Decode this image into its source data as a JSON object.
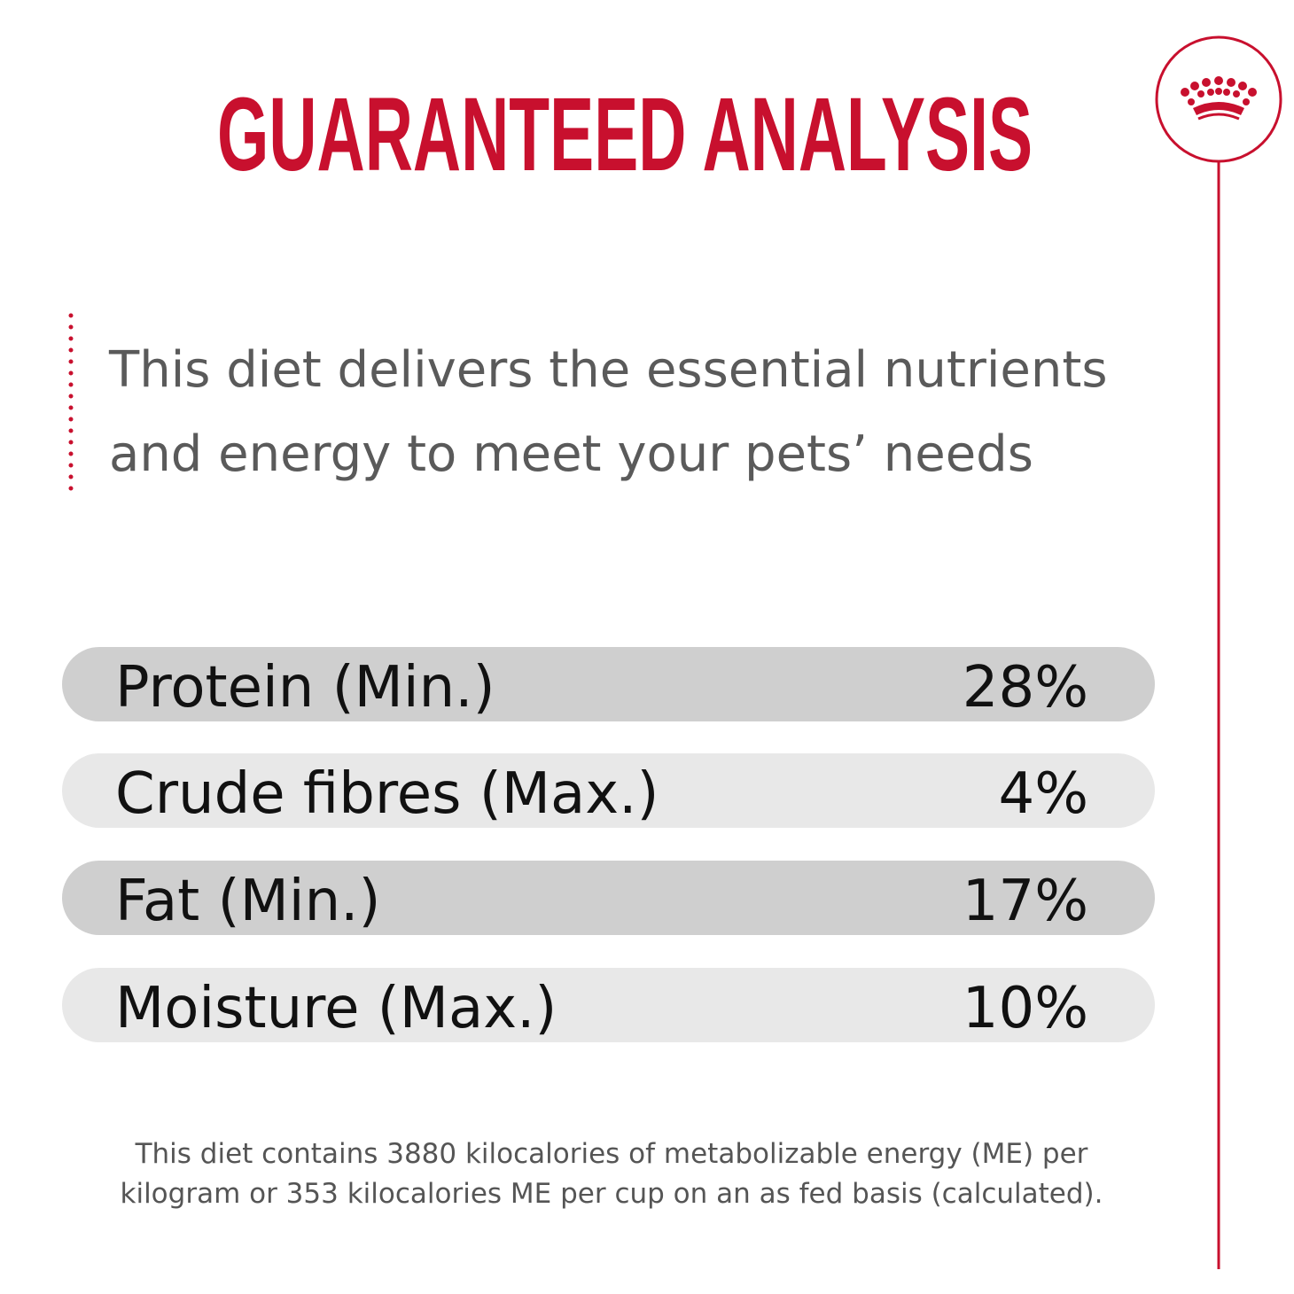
{
  "header": {
    "title": "GUARANTEED ANALYSIS"
  },
  "intro": {
    "lines": [
      "This diet delivers the essential nutrients",
      "and energy to meet your pets’ needs"
    ]
  },
  "table": {
    "rows": [
      [
        "Protein (Min.)",
        "28%"
      ],
      [
        "Crude fibres (Max.)",
        "4%"
      ],
      [
        "Fat (Min.)",
        "17%"
      ],
      [
        "Moisture (Max.)",
        "10%"
      ]
    ]
  },
  "footnote": {
    "lines": [
      "This diet contains 3880 kilocalories of metabolizable energy (ME) per",
      "kilogram or 353 kilocalories ME per cup on an as fed basis (calculated)."
    ]
  }
}
